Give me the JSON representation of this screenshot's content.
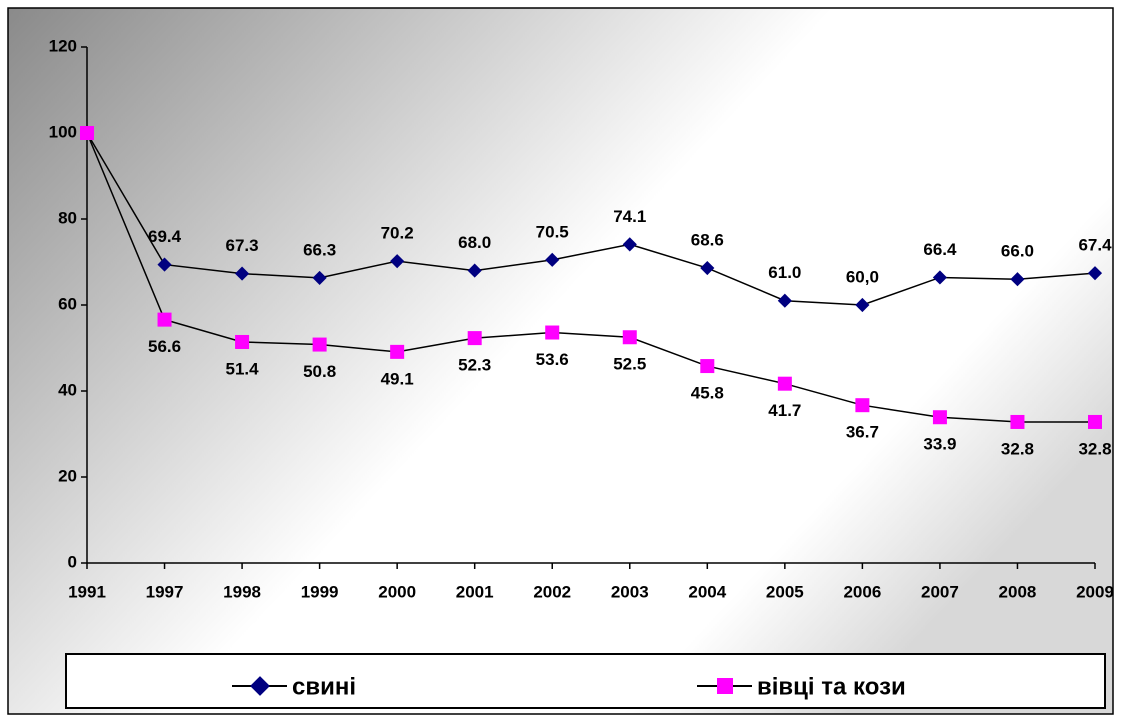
{
  "chart_data": {
    "type": "line",
    "categories": [
      "1991",
      "1997",
      "1998",
      "1999",
      "2000",
      "2001",
      "2002",
      "2003",
      "2004",
      "2005",
      "2006",
      "2007",
      "2008",
      "2009"
    ],
    "series": [
      {
        "name": "свині",
        "color": "#000080",
        "marker": "diamond",
        "values": [
          100,
          69.4,
          67.3,
          66.3,
          70.2,
          68.0,
          70.5,
          74.1,
          68.6,
          61.0,
          60.0,
          66.4,
          66.0,
          67.4
        ],
        "value_labels": [
          null,
          "69.4",
          "67.3",
          "66.3",
          "70.2",
          "68.0",
          "70.5",
          "74.1",
          "68.6",
          "61.0",
          "60,0",
          "66.4",
          "66.0",
          "67.4"
        ],
        "label_position": "above"
      },
      {
        "name": "вівці та кози",
        "color": "#ff00ff",
        "marker": "square",
        "values": [
          100,
          56.6,
          51.4,
          50.8,
          49.1,
          52.3,
          53.6,
          52.5,
          45.8,
          41.7,
          36.7,
          33.9,
          32.8,
          32.8
        ],
        "value_labels": [
          null,
          "56.6",
          "51.4",
          "50.8",
          "49.1",
          "52.3",
          "53.6",
          "52.5",
          "45.8",
          "41.7",
          "36.7",
          "33.9",
          "32.8",
          "32.8"
        ],
        "label_position": "below"
      }
    ],
    "ylim": [
      0,
      120
    ],
    "yticks": [
      0,
      20,
      40,
      60,
      80,
      100,
      120
    ],
    "grid": false,
    "legend": "bottom"
  }
}
